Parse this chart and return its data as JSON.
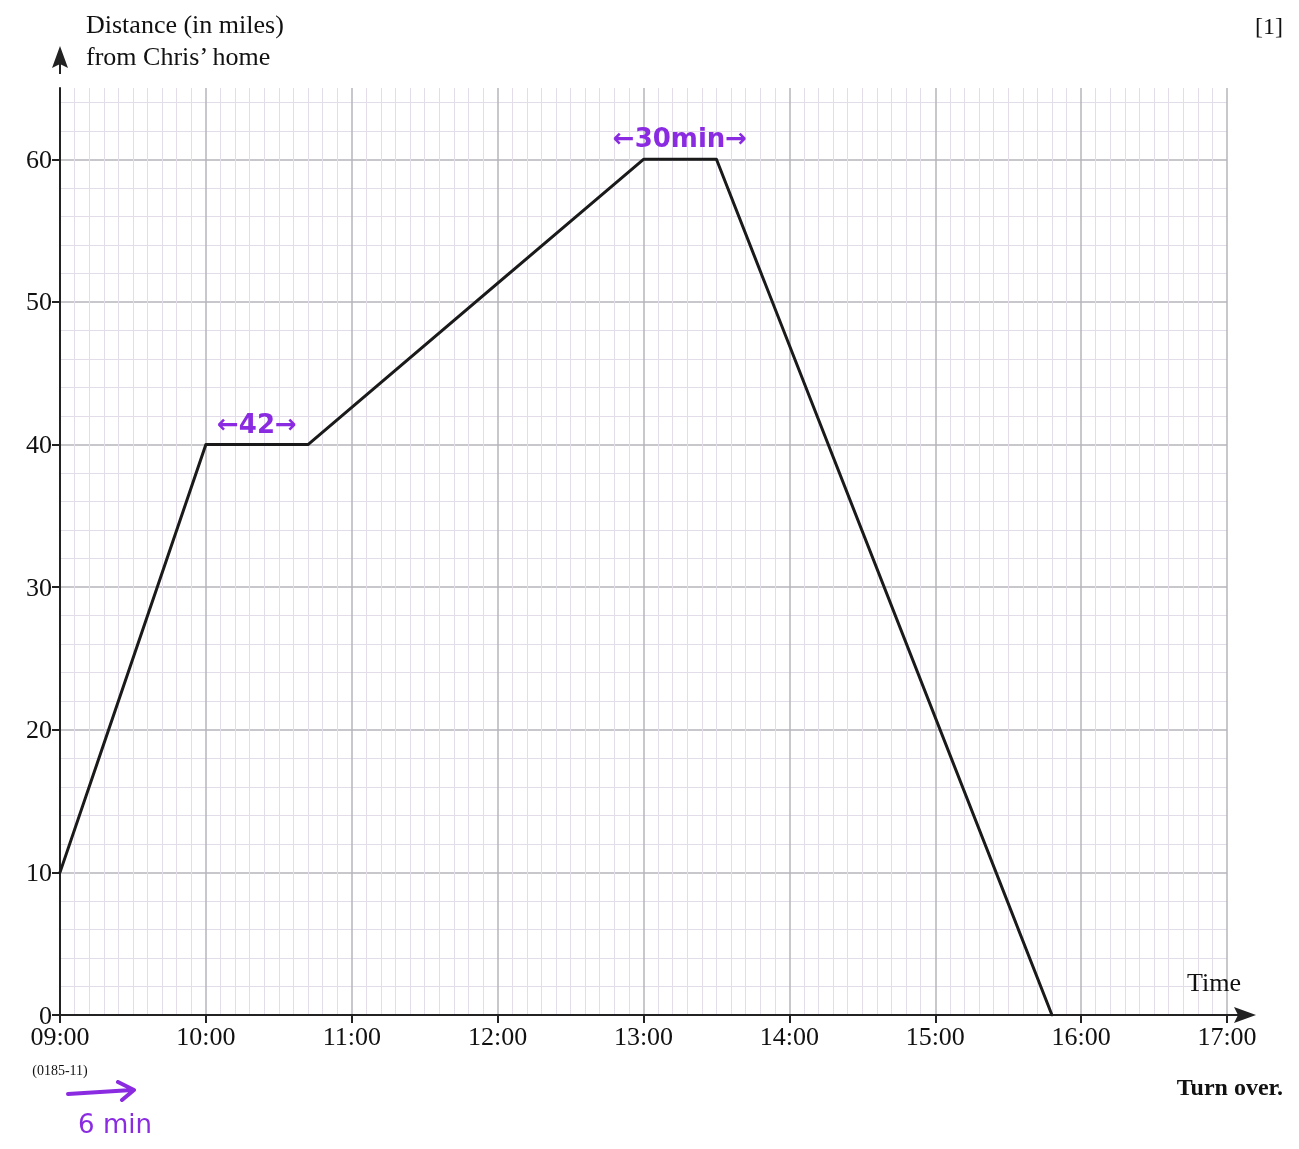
{
  "chart_data": {
    "type": "line",
    "xlabel": "Time",
    "ylabel": "Distance (in miles)\nfrom Chris’ home",
    "x": [
      9,
      10,
      10.7,
      13,
      13.5,
      15.8
    ],
    "series": [
      {
        "color": "#1a1a1a",
        "values": [
          10,
          40,
          40,
          60,
          60,
          0
        ]
      }
    ],
    "xlim": [
      9,
      17
    ],
    "ylim": [
      0,
      65
    ],
    "xticks": [
      {
        "value": 9,
        "label": "09:00"
      },
      {
        "value": 10,
        "label": "10:00"
      },
      {
        "value": 11,
        "label": "11:00"
      },
      {
        "value": 12,
        "label": "12:00"
      },
      {
        "value": 13,
        "label": "13:00"
      },
      {
        "value": 14,
        "label": "14:00"
      },
      {
        "value": 15,
        "label": "15:00"
      },
      {
        "value": 16,
        "label": "16:00"
      },
      {
        "value": 17,
        "label": "17:00"
      }
    ],
    "yticks": [
      0,
      10,
      20,
      30,
      40,
      50,
      60
    ],
    "grid": true,
    "marker": "none",
    "line_style": "solid",
    "annotations": [
      {
        "text": "←42→",
        "x": 10.35,
        "y": 40
      },
      {
        "text": "←30min→",
        "x": 13.25,
        "y": 60
      },
      "[1]",
      "Turn over.",
      "(0185-11)",
      "6 min"
    ]
  }
}
